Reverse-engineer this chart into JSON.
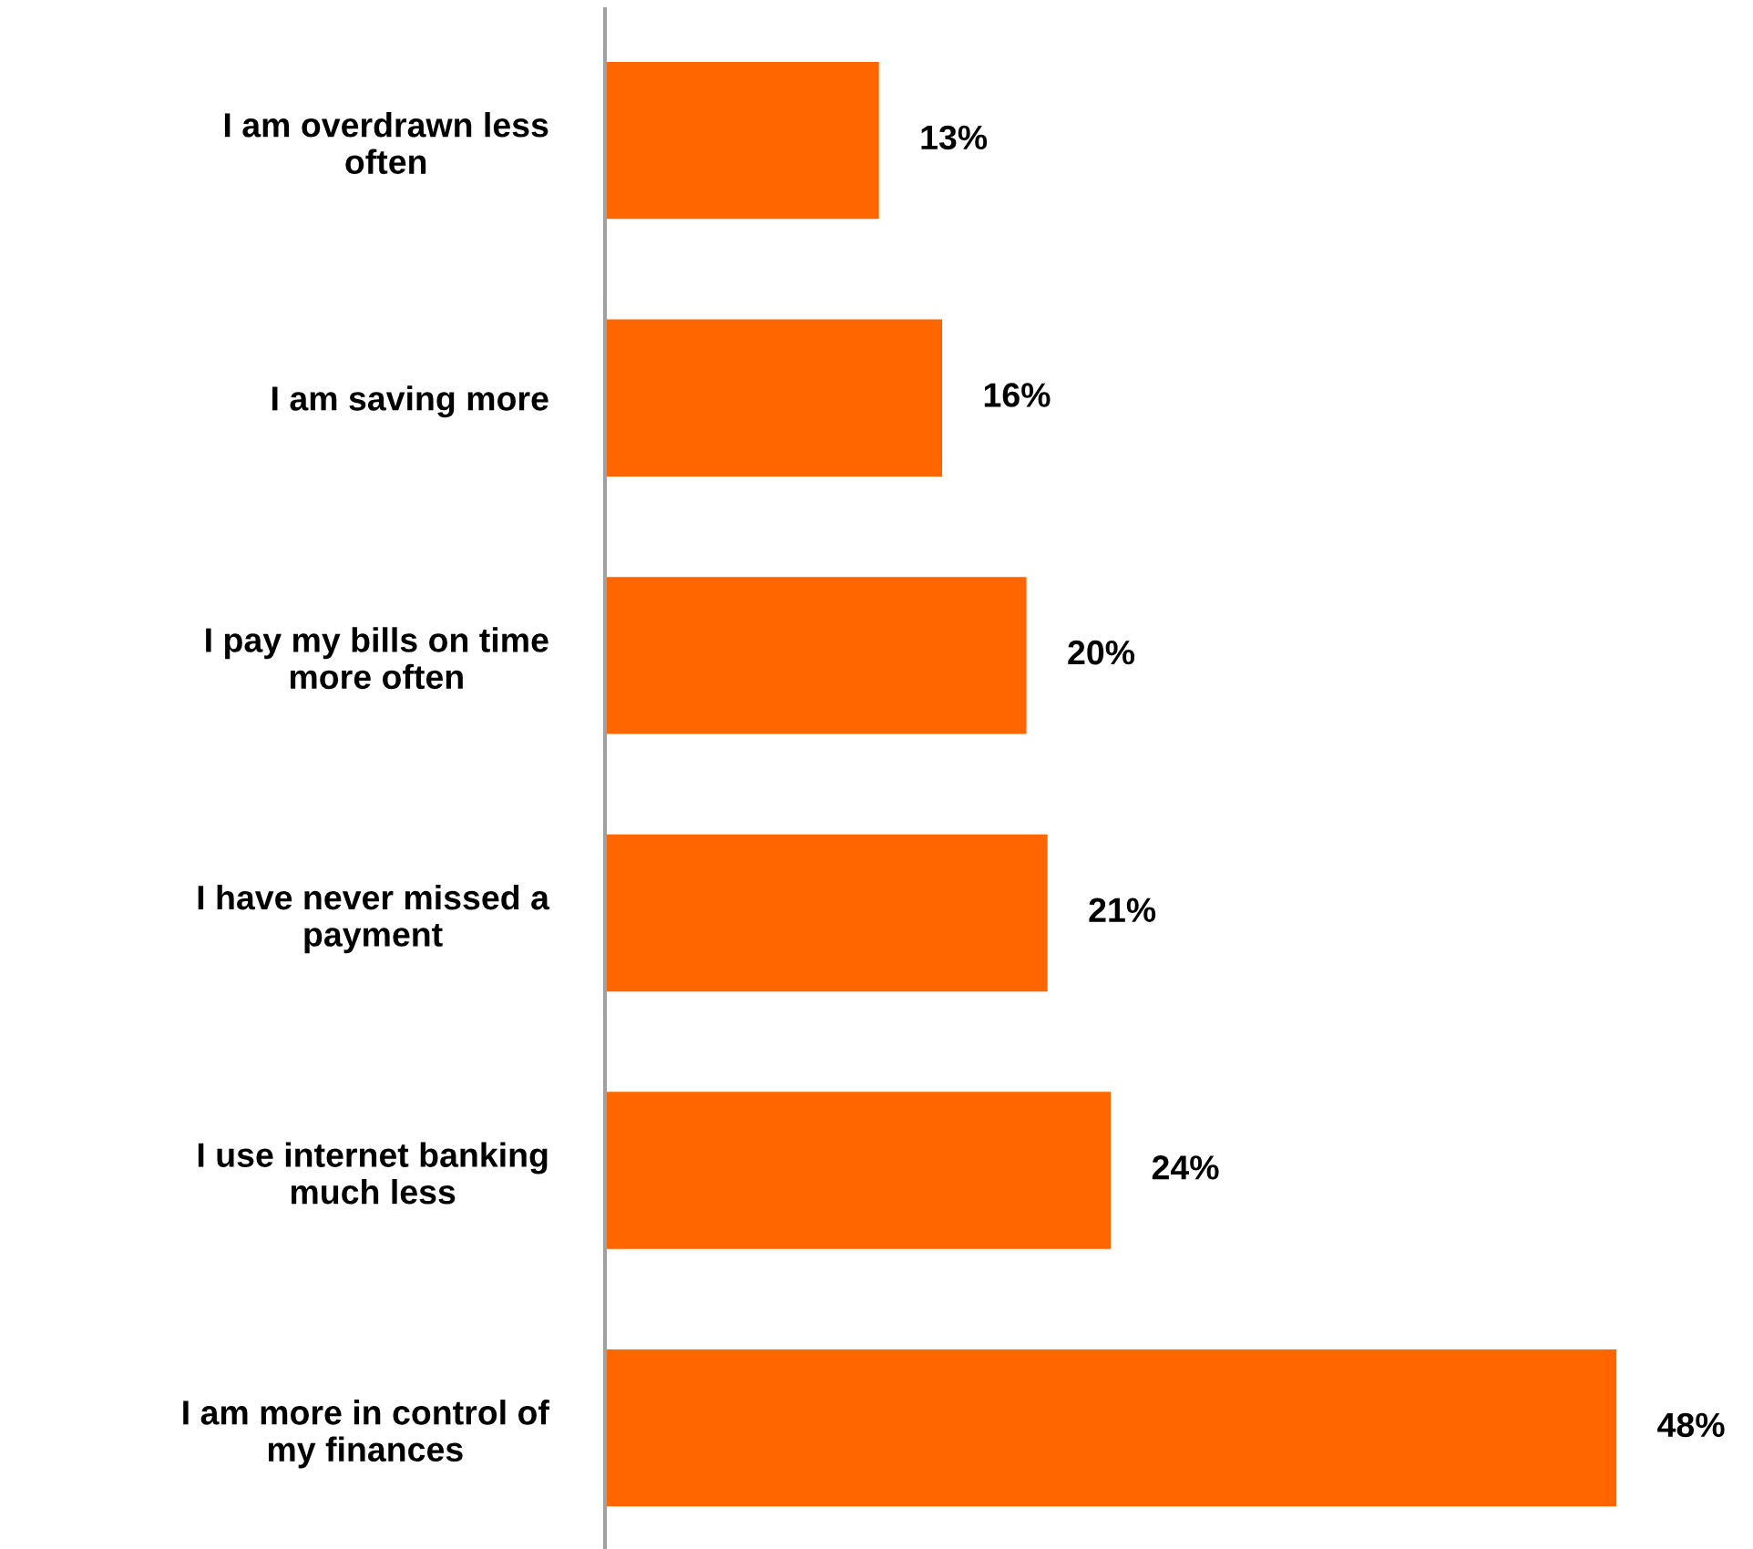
{
  "chart_data": {
    "type": "bar",
    "orientation": "horizontal",
    "categories": [
      "I am overdrawn less\noften",
      "I am saving more",
      "I pay my bills on time\nmore often",
      "I have never missed a\npayment",
      "I use internet banking\nmuch less",
      "I am more in control of\nmy finances"
    ],
    "values": [
      13,
      16,
      20,
      21,
      24,
      48
    ],
    "value_labels": [
      "13%",
      "16%",
      "20%",
      "21%",
      "24%",
      "48%"
    ],
    "color": "#ff6600",
    "tick_labels": "y",
    "grid": false,
    "legend": false
  }
}
